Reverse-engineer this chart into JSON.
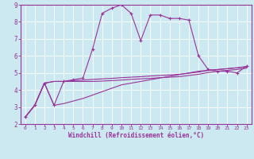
{
  "title": "",
  "xlabel": "Windchill (Refroidissement éolien,°C)",
  "ylabel": "",
  "xlim": [
    -0.5,
    23.5
  ],
  "ylim": [
    2,
    9
  ],
  "xticks": [
    0,
    1,
    2,
    3,
    4,
    5,
    6,
    7,
    8,
    9,
    10,
    11,
    12,
    13,
    14,
    15,
    16,
    17,
    18,
    19,
    20,
    21,
    22,
    23
  ],
  "yticks": [
    2,
    3,
    4,
    5,
    6,
    7,
    8,
    9
  ],
  "bg_color": "#cce8f0",
  "line_color": "#993399",
  "grid_color": "#ffffff",
  "line1_x": [
    0,
    1,
    2,
    3,
    4,
    5,
    6,
    7,
    8,
    9,
    10,
    11,
    12,
    13,
    14,
    15,
    16,
    17,
    18,
    19,
    20,
    21,
    22,
    23
  ],
  "line1_y": [
    2.4,
    3.1,
    4.4,
    3.1,
    4.5,
    4.6,
    4.7,
    6.4,
    8.5,
    8.8,
    9.0,
    8.5,
    6.9,
    8.4,
    8.4,
    8.2,
    8.2,
    8.1,
    6.0,
    5.2,
    5.1,
    5.1,
    5.0,
    5.4
  ],
  "line2_x": [
    0,
    1,
    2,
    3,
    4,
    5,
    6,
    7,
    8,
    9,
    10,
    11,
    12,
    13,
    14,
    15,
    16,
    17,
    18,
    19,
    20,
    21,
    22,
    23
  ],
  "line2_y": [
    2.4,
    3.1,
    4.4,
    4.5,
    4.5,
    4.55,
    4.58,
    4.62,
    4.65,
    4.68,
    4.72,
    4.75,
    4.78,
    4.82,
    4.85,
    4.88,
    4.92,
    4.98,
    5.05,
    5.15,
    5.2,
    5.25,
    5.3,
    5.38
  ],
  "line3_x": [
    0,
    1,
    2,
    3,
    4,
    5,
    6,
    7,
    8,
    9,
    10,
    11,
    12,
    13,
    14,
    15,
    16,
    17,
    18,
    19,
    20,
    21,
    22,
    23
  ],
  "line3_y": [
    2.4,
    3.1,
    4.4,
    4.5,
    4.5,
    4.5,
    4.5,
    4.5,
    4.52,
    4.55,
    4.58,
    4.62,
    4.65,
    4.68,
    4.72,
    4.75,
    4.78,
    4.85,
    4.92,
    5.02,
    5.1,
    5.15,
    5.2,
    5.28
  ],
  "line4_x": [
    0,
    1,
    2,
    3,
    4,
    5,
    6,
    7,
    8,
    9,
    10,
    11,
    12,
    13,
    14,
    15,
    16,
    17,
    18,
    19,
    20,
    21,
    22,
    23
  ],
  "line4_y": [
    2.4,
    3.1,
    4.4,
    3.1,
    3.2,
    3.35,
    3.5,
    3.7,
    3.9,
    4.1,
    4.3,
    4.4,
    4.5,
    4.6,
    4.7,
    4.8,
    4.9,
    5.0,
    5.1,
    5.15,
    5.2,
    5.25,
    5.3,
    5.35
  ]
}
